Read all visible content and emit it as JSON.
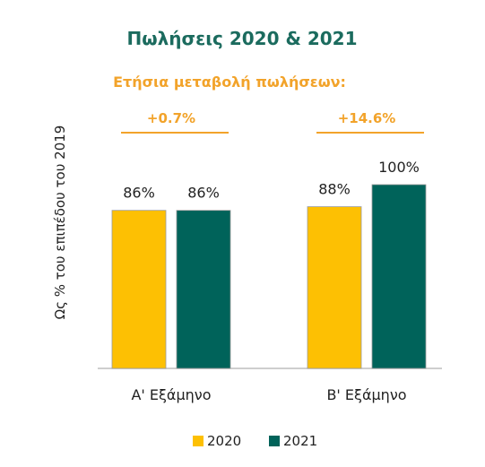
{
  "chart_data": {
    "type": "bar",
    "title": "Πωλήσεις 2020 & 2021",
    "subtitle": "Ετήσια μεταβολή πωλήσεων:",
    "ylabel": "Ως % του επιπέδου του 2019",
    "xlabel": "",
    "categories": [
      "Α' Εξάμηνο",
      "Β' Εξάμηνο"
    ],
    "series": [
      {
        "name": "2020",
        "values": [
          86,
          88
        ],
        "labels": [
          "86%",
          "88%"
        ],
        "color": "#fdc003"
      },
      {
        "name": "2021",
        "values": [
          86,
          100
        ],
        "labels": [
          "86%",
          "100%"
        ],
        "color": "#00635a"
      }
    ],
    "annual_change": [
      "+0.7%",
      "+14.6%"
    ],
    "accent_color": "#f2a32a",
    "ylim": [
      0,
      100
    ],
    "grid": false,
    "legend": "bottom-center"
  }
}
